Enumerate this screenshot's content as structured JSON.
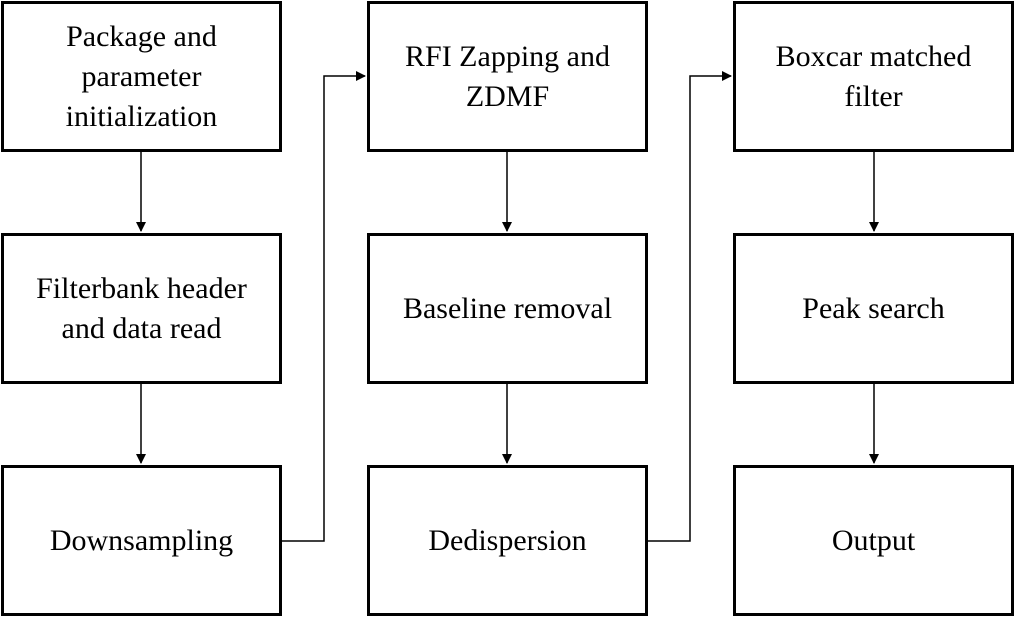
{
  "diagram": {
    "steps": {
      "package_init": "Package and\nparameter\ninitialization",
      "filterbank_read": "Filterbank header\nand data read",
      "downsampling": "Downsampling",
      "rfi_zapping": "RFI Zapping and\nZDMF",
      "baseline_removal": "Baseline removal",
      "dedispersion": "Dedispersion",
      "boxcar_filter": "Boxcar matched\nfilter",
      "peak_search": "Peak search",
      "output": "Output"
    },
    "line_color": "#000000",
    "background_color": "#ffffff"
  }
}
